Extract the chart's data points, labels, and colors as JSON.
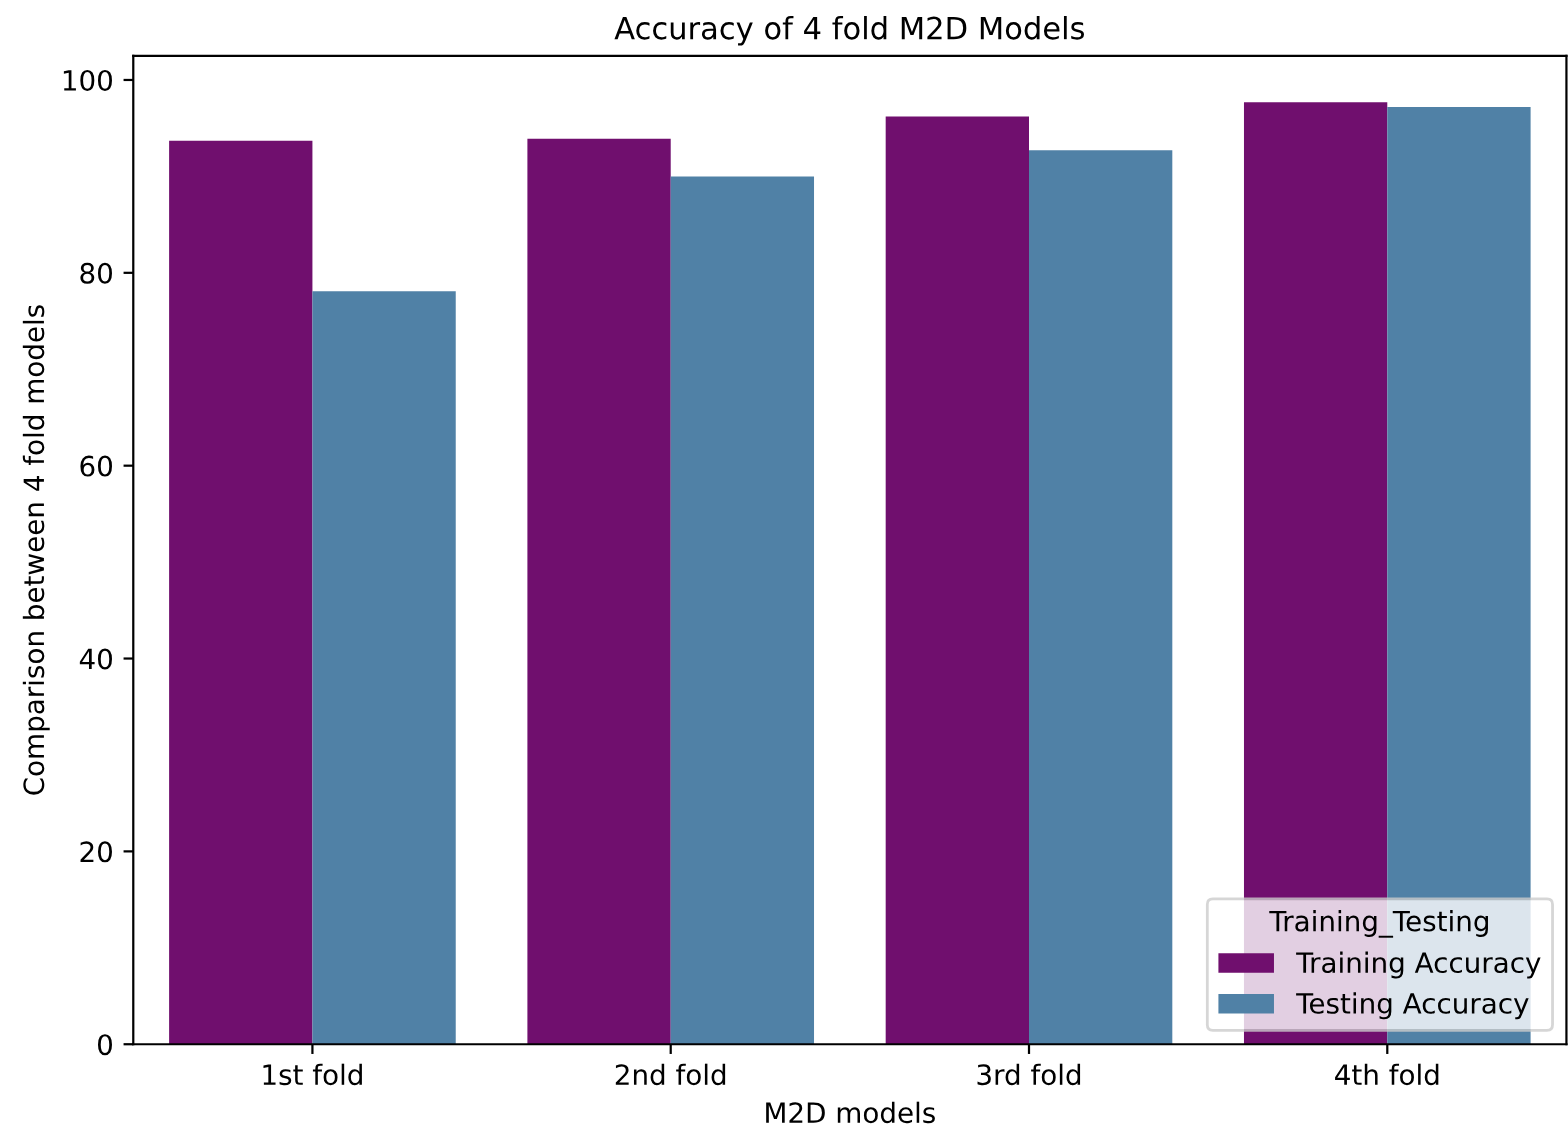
{
  "chart_data": {
    "type": "bar",
    "title": "Accuracy of 4 fold M2D Models",
    "xlabel": "M2D models",
    "ylabel": "Comparison between 4 fold models",
    "legend_title": "Training_Testing",
    "categories": [
      "1st fold",
      "2nd fold",
      "3rd fold",
      "4th fold"
    ],
    "series": [
      {
        "name": "Training Accuracy",
        "color": "#700f6e",
        "values": [
          93.7,
          93.9,
          96.2,
          97.7
        ]
      },
      {
        "name": "Testing Accuracy",
        "color": "#5081a6",
        "values": [
          78.1,
          90.0,
          92.7,
          97.2
        ]
      }
    ],
    "ylim": [
      0,
      102.5
    ],
    "yticks": [
      0,
      20,
      40,
      60,
      80,
      100
    ],
    "grid": false,
    "legend": "lower right"
  }
}
